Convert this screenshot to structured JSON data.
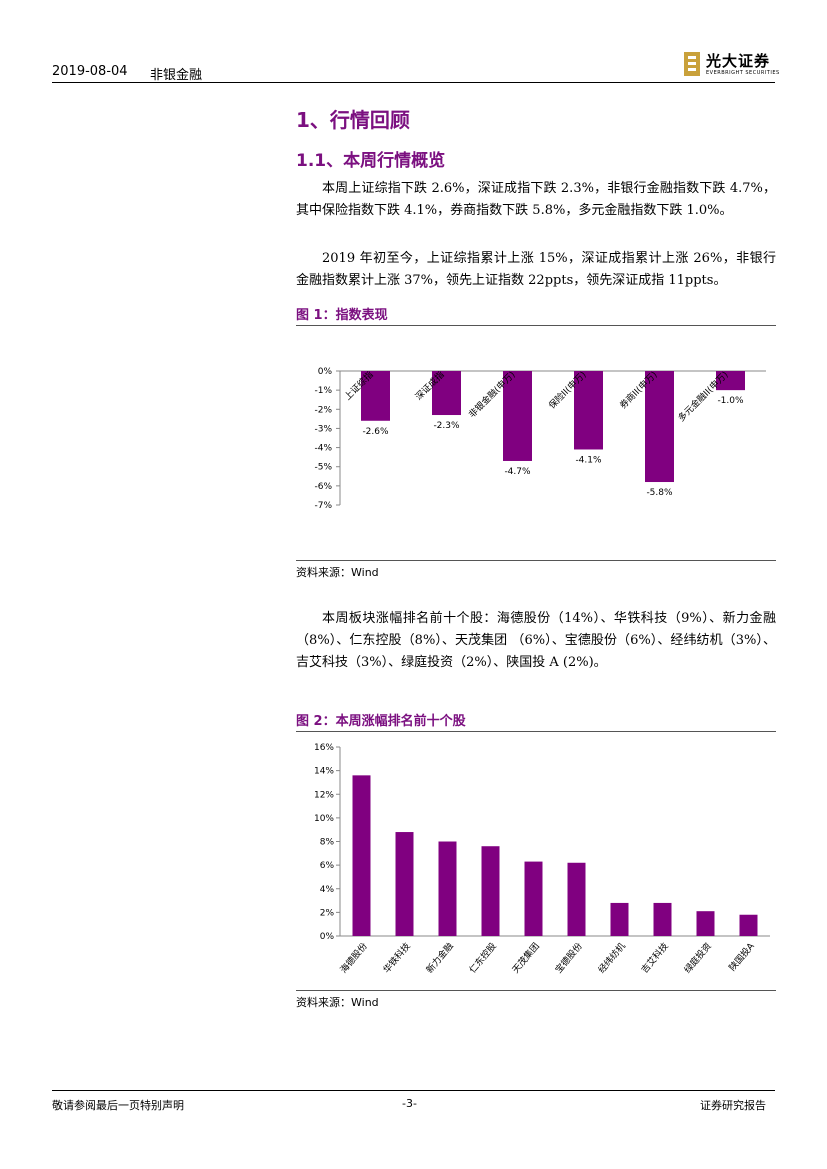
{
  "header": {
    "date": "2019-08-04",
    "sector": "非银金融",
    "logo_cn": "光大证券",
    "logo_en": "EVERBRIGHT SECURITIES"
  },
  "sections": {
    "h1": "1、行情回顾",
    "h2": "1.1、本周行情概览"
  },
  "paragraphs": {
    "p1": "本周上证综指下跌 2.6%，深证成指下跌 2.3%，非银行金融指数下跌 4.7%，其中保险指数下跌 4.1%，券商指数下跌 5.8%，多元金融指数下跌 1.0%。",
    "p2": "2019 年初至今，上证综指累计上涨 15%，深证成指累计上涨 26%，非银行金融指数累计上涨 37%，领先上证指数 22ppts，领先深证成指 11ppts。",
    "p3": "本周板块涨幅排名前十个股：海德股份（14%）、华铁科技（9%）、新力金融（8%）、仁东控股（8%）、天茂集团 （6%）、宝德股份（6%）、经纬纺机（3%）、吉艾科技（3%）、绿庭投资（2%）、陕国投 A (2%)。"
  },
  "figures": {
    "fig1_title": "图 1：指数表现",
    "fig1_source": "资料来源：Wind",
    "fig2_title": "图 2：本周涨幅排名前十个股",
    "fig2_source": "资料来源：Wind"
  },
  "chart_data": [
    {
      "type": "bar",
      "title": "图 1：指数表现",
      "categories": [
        "上证综指",
        "深证成指",
        "非银金融(申万)",
        "保险II(申万)",
        "券商II(申万)",
        "多元金融II(申万)"
      ],
      "values": [
        -2.6,
        -2.3,
        -4.7,
        -4.1,
        -5.8,
        -1.0
      ],
      "data_labels": [
        "-2.6%",
        "-2.3%",
        "-4.7%",
        "-4.1%",
        "-5.8%",
        "-1.0%"
      ],
      "y_ticks": [
        "0%",
        "-1%",
        "-2%",
        "-3%",
        "-4%",
        "-5%",
        "-6%",
        "-7%"
      ],
      "ylim": [
        -7,
        0
      ],
      "color": "#800080",
      "grid": false
    },
    {
      "type": "bar",
      "title": "图 2：本周涨幅排名前十个股",
      "categories": [
        "海德股份",
        "华铁科技",
        "新力金融",
        "仁东控股",
        "天茂集团",
        "宝德股份",
        "经纬纺机",
        "吉艾科技",
        "绿庭投资",
        "陕国投A"
      ],
      "values": [
        13.6,
        8.8,
        8.0,
        7.6,
        6.3,
        6.2,
        2.8,
        2.8,
        2.1,
        1.8
      ],
      "y_ticks": [
        "0%",
        "2%",
        "4%",
        "6%",
        "8%",
        "10%",
        "12%",
        "14%",
        "16%"
      ],
      "ylim": [
        0,
        16
      ],
      "color": "#800080",
      "grid": false
    }
  ],
  "footer": {
    "disclaimer": "敬请参阅最后一页特别声明",
    "page": "-3-",
    "report_type": "证券研究报告"
  }
}
